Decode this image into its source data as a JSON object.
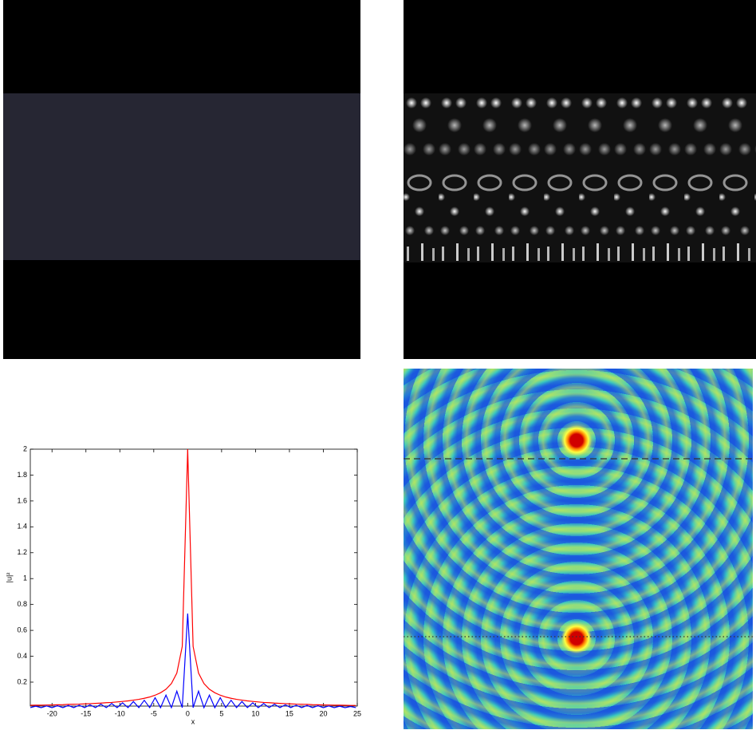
{
  "chart_data": {
    "type": "line",
    "xlabel": "x",
    "ylabel": "|u|²",
    "x": [
      -23.2,
      -22.4,
      -21.6,
      -20.8,
      -20,
      -19.2,
      -18.4,
      -17.6,
      -16.8,
      -16,
      -15.2,
      -14.4,
      -13.6,
      -12.8,
      -12,
      -11.2,
      -10.4,
      -9.6,
      -8.8,
      -8,
      -7.2,
      -6.4,
      -5.6,
      -4.8,
      -4,
      -3.2,
      -2.4,
      -1.6,
      -0.8,
      0,
      0.8,
      1.6,
      2.4,
      3.2,
      4,
      4.8,
      5.6,
      6.4,
      7.2,
      8,
      8.8,
      9.6,
      10.4,
      11.2,
      12,
      12.8,
      13.6,
      14.4,
      15.2,
      16,
      16.8,
      17.6,
      18.4,
      19.2,
      20,
      20.8,
      21.6,
      22.4,
      23.2,
      24,
      24.8
    ],
    "series": [
      {
        "color": "#ff0000",
        "values": [
          0.021,
          0.022,
          0.022,
          0.023,
          0.024,
          0.025,
          0.026,
          0.028,
          0.029,
          0.03,
          0.032,
          0.034,
          0.036,
          0.038,
          0.041,
          0.043,
          0.047,
          0.051,
          0.055,
          0.061,
          0.067,
          0.075,
          0.085,
          0.099,
          0.118,
          0.145,
          0.189,
          0.27,
          0.476,
          2,
          0.476,
          0.27,
          0.189,
          0.145,
          0.118,
          0.099,
          0.085,
          0.075,
          0.067,
          0.061,
          0.055,
          0.051,
          0.047,
          0.043,
          0.041,
          0.038,
          0.036,
          0.034,
          0.032,
          0.03,
          0.029,
          0.028,
          0.026,
          0.025,
          0.024,
          0.023,
          0.022,
          0.022,
          0.021,
          0.02,
          0.02
        ]
      },
      {
        "color": "#0000ff",
        "values": [
          0.003,
          0.014,
          0.003,
          0.016,
          0.003,
          0.018,
          0.003,
          0.02,
          0.003,
          0.022,
          0.003,
          0.025,
          0.003,
          0.03,
          0.003,
          0.035,
          0.003,
          0.04,
          0.003,
          0.05,
          0.003,
          0.06,
          0.003,
          0.08,
          0.003,
          0.1,
          0.003,
          0.13,
          0.003,
          0.73,
          0.003,
          0.13,
          0.003,
          0.1,
          0.003,
          0.08,
          0.003,
          0.06,
          0.003,
          0.05,
          0.003,
          0.04,
          0.003,
          0.035,
          0.003,
          0.03,
          0.003,
          0.025,
          0.003,
          0.022,
          0.003,
          0.02,
          0.003,
          0.018,
          0.003,
          0.016,
          0.003,
          0.014,
          0.003,
          0.012,
          0.003
        ]
      }
    ],
    "xlim": [
      -23.2,
      25
    ],
    "ylim": [
      0.015,
      2
    ],
    "xticks": [
      -20,
      -15,
      -10,
      -5,
      0,
      5,
      10,
      15,
      20,
      25
    ],
    "yticks": [
      0.2,
      0.4,
      0.6,
      0.8,
      1,
      1.2,
      1.4,
      1.6,
      1.8,
      2
    ]
  }
}
